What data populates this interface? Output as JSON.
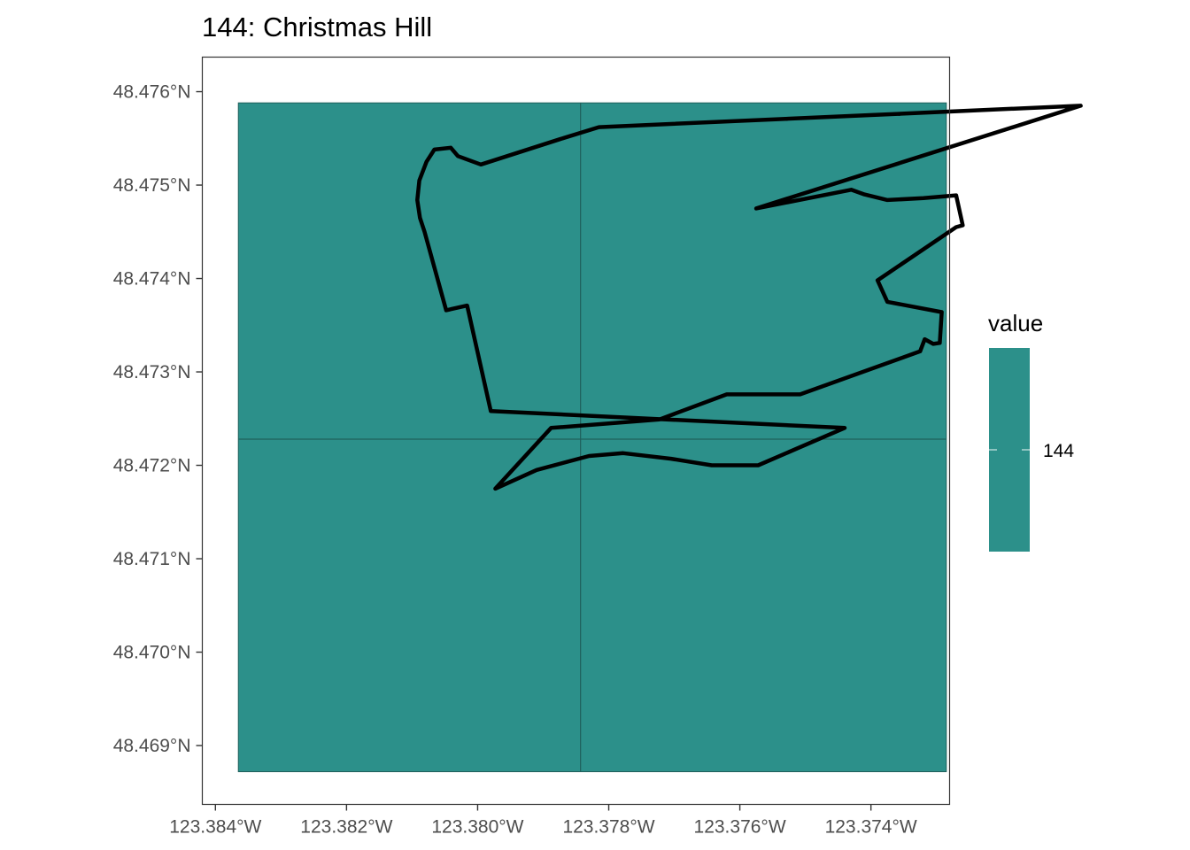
{
  "title": "144: Christmas Hill",
  "colors": {
    "fill": "#2c908a",
    "cell_line": "#1f5f5b",
    "boundary": "#000000",
    "panel_border": "#333333",
    "legend_tick": "#cfe8e6"
  },
  "chart_data": {
    "type": "map",
    "title": "144: Christmas Hill",
    "crs": "lon/lat",
    "xlim": [
      -123.3842,
      -123.3728
    ],
    "ylim": [
      48.46837,
      48.47637
    ],
    "x_ticks": [
      -123.384,
      -123.382,
      -123.38,
      -123.378,
      -123.376,
      -123.374
    ],
    "x_tick_labels": [
      "123.384°W",
      "123.382°W",
      "123.380°W",
      "123.378°W",
      "123.376°W",
      "123.374°W"
    ],
    "y_ticks": [
      48.469,
      48.47,
      48.471,
      48.472,
      48.473,
      48.474,
      48.475,
      48.476
    ],
    "y_tick_labels": [
      "48.469°N",
      "48.470°N",
      "48.471°N",
      "48.472°N",
      "48.473°N",
      "48.474°N",
      "48.475°N",
      "48.476°N"
    ],
    "raster_extent": {
      "lon": [
        -123.38365,
        -123.37285
      ],
      "lat": [
        48.46872,
        48.47588
      ]
    },
    "raster_cell_breaks": {
      "lon": -123.37843,
      "lat": 48.47228
    },
    "raster_value": 144,
    "grid": false,
    "legend": {
      "title": "value",
      "labels": [
        "144"
      ],
      "position": "right"
    },
    "boundary": [
      [
        -123.37815,
        48.47562
      ],
      [
        -123.3708,
        48.47585
      ],
      [
        -123.37575,
        48.47475
      ],
      [
        -123.3743,
        48.47495
      ],
      [
        -123.3741,
        48.4749
      ],
      [
        -123.37375,
        48.47484
      ],
      [
        -123.3732,
        48.47486
      ],
      [
        -123.3727,
        48.47489
      ],
      [
        -123.3726,
        48.47457
      ],
      [
        -123.3727,
        48.47455
      ],
      [
        -123.3739,
        48.47398
      ],
      [
        -123.37375,
        48.47375
      ],
      [
        -123.37292,
        48.47364
      ],
      [
        -123.37295,
        48.47331
      ],
      [
        -123.37305,
        48.4733
      ],
      [
        -123.37318,
        48.47335
      ],
      [
        -123.37325,
        48.47322
      ],
      [
        -123.37508,
        48.47276
      ],
      [
        -123.3762,
        48.47276
      ],
      [
        -123.37723,
        48.47249
      ],
      [
        -123.37888,
        48.4724
      ],
      [
        -123.37973,
        48.47175
      ],
      [
        -123.3791,
        48.47195
      ],
      [
        -123.3783,
        48.4721
      ],
      [
        -123.37778,
        48.47213
      ],
      [
        -123.37705,
        48.47207
      ],
      [
        -123.37643,
        48.472
      ],
      [
        -123.37572,
        48.472
      ],
      [
        -123.3744,
        48.4724
      ],
      [
        -123.3798,
        48.47258
      ],
      [
        -123.38016,
        48.47371
      ],
      [
        -123.38048,
        48.47366
      ],
      [
        -123.38081,
        48.4745
      ],
      [
        -123.38088,
        48.47465
      ],
      [
        -123.38092,
        48.47484
      ],
      [
        -123.38089,
        48.47505
      ],
      [
        -123.38078,
        48.47525
      ],
      [
        -123.38066,
        48.47538
      ],
      [
        -123.38041,
        48.4754
      ],
      [
        -123.3803,
        48.47531
      ],
      [
        -123.37995,
        48.47522
      ],
      [
        -123.37875,
        48.47549
      ],
      [
        -123.37815,
        48.47562
      ]
    ]
  }
}
